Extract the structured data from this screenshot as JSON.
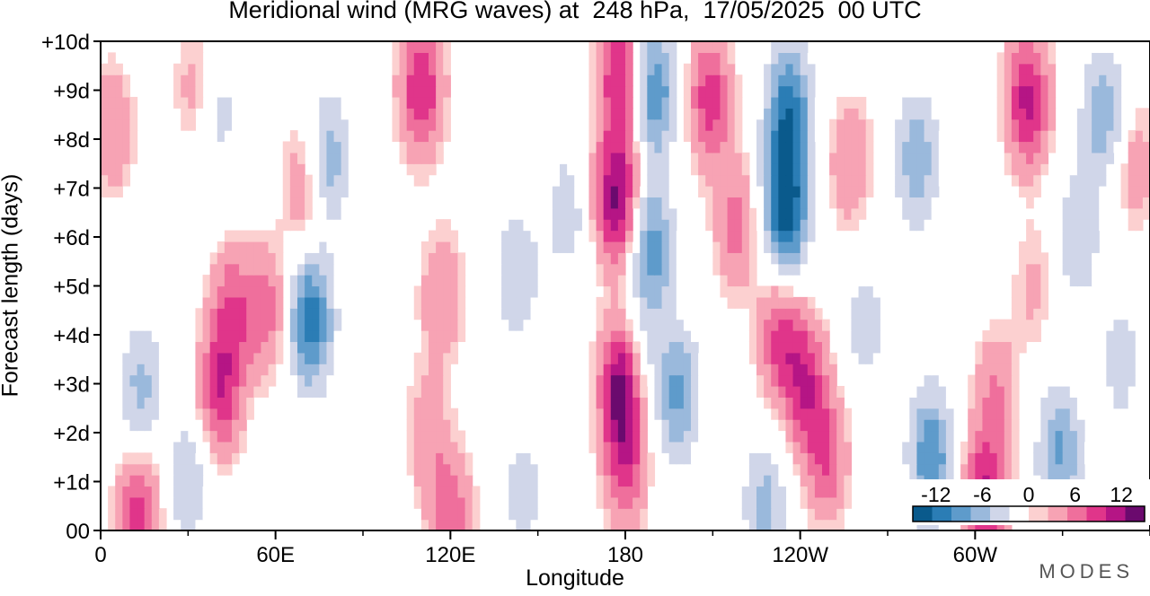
{
  "title": "Meridional wind (MRG waves) at  248 hPa,  17/05/2025  00 UTC",
  "brand": "MODES",
  "colors": {
    "levels": [
      "#0a5a8c",
      "#2b7db5",
      "#5e9bcb",
      "#9ab9dc",
      "#d0d6e9",
      "#ffffff",
      "#fcd0d0",
      "#f7a3b4",
      "#ef6f9c",
      "#e0358a",
      "#b51585",
      "#6b0a6e"
    ]
  },
  "chart_data": {
    "type": "heatmap",
    "title": "Meridional wind (MRG waves) at  248 hPa,  17/05/2025  00 UTC",
    "xlabel": "Longitude",
    "ylabel": "Forecast length (days)",
    "x_ticks": [
      "0",
      "60E",
      "120E",
      "180",
      "120W",
      "60W"
    ],
    "x_tick_values": [
      0,
      60,
      120,
      180,
      240,
      300
    ],
    "xlim": [
      0,
      360
    ],
    "y_ticks": [
      "00",
      "+1d",
      "+2d",
      "+3d",
      "+4d",
      "+5d",
      "+6d",
      "+7d",
      "+8d",
      "+9d",
      "+10d"
    ],
    "ylim": [
      0,
      10
    ],
    "colorbar": {
      "ticks": [
        "-12",
        "-6",
        "0",
        "6",
        "12"
      ],
      "tick_values": [
        -12,
        -6,
        0,
        6,
        12
      ],
      "range": [
        -15,
        15
      ]
    },
    "features": [
      {
        "lon": 13,
        "day": 0.3,
        "value": 9
      },
      {
        "lon": 4,
        "day": 8.2,
        "value": 5
      },
      {
        "lon": 14,
        "day": 2.9,
        "value": -6
      },
      {
        "lon": 30,
        "day": 1.0,
        "value": -5
      },
      {
        "lon": 33,
        "day": 9.0,
        "value": 4
      },
      {
        "lon": 40,
        "day": 8.5,
        "value": -4
      },
      {
        "lon": 45,
        "day": 4.5,
        "value": 7
      },
      {
        "lon": 41,
        "day": 2.8,
        "value": 9
      },
      {
        "lon": 57,
        "day": 4.5,
        "value": 6
      },
      {
        "lon": 70,
        "day": 7.0,
        "value": 5
      },
      {
        "lon": 72,
        "day": 4.3,
        "value": -12
      },
      {
        "lon": 78,
        "day": 7.6,
        "value": -7
      },
      {
        "lon": 110,
        "day": 9.0,
        "value": 10
      },
      {
        "lon": 112,
        "day": 2.0,
        "value": 4
      },
      {
        "lon": 117,
        "day": 4.8,
        "value": 5
      },
      {
        "lon": 120,
        "day": 0.3,
        "value": 7
      },
      {
        "lon": 143,
        "day": 5.2,
        "value": -5
      },
      {
        "lon": 160,
        "day": 6.5,
        "value": -4
      },
      {
        "lon": 145,
        "day": 0.8,
        "value": -4
      },
      {
        "lon": 178,
        "day": 9.3,
        "value": 10
      },
      {
        "lon": 177,
        "day": 6.8,
        "value": 13
      },
      {
        "lon": 179,
        "day": 3.0,
        "value": 15
      },
      {
        "lon": 180,
        "day": 1.3,
        "value": 7
      },
      {
        "lon": 184,
        "day": 3.5,
        "value": -5
      },
      {
        "lon": 190,
        "day": 9.0,
        "value": -10
      },
      {
        "lon": 189,
        "day": 5.8,
        "value": -9
      },
      {
        "lon": 198,
        "day": 2.8,
        "value": -8
      },
      {
        "lon": 209,
        "day": 8.8,
        "value": 9
      },
      {
        "lon": 218,
        "day": 6.2,
        "value": 6
      },
      {
        "lon": 236,
        "day": 8.5,
        "value": -12
      },
      {
        "lon": 235,
        "day": 6.5,
        "value": -14
      },
      {
        "lon": 242,
        "day": 3.0,
        "value": 9
      },
      {
        "lon": 233,
        "day": 4.0,
        "value": 8
      },
      {
        "lon": 228,
        "day": 0.5,
        "value": -6
      },
      {
        "lon": 249,
        "day": 1.5,
        "value": 7
      },
      {
        "lon": 257,
        "day": 7.5,
        "value": 5
      },
      {
        "lon": 262,
        "day": 4.2,
        "value": -4
      },
      {
        "lon": 280,
        "day": 7.6,
        "value": -7
      },
      {
        "lon": 285,
        "day": 1.5,
        "value": -10
      },
      {
        "lon": 303,
        "day": 0.6,
        "value": 11
      },
      {
        "lon": 307,
        "day": 2.8,
        "value": 5
      },
      {
        "lon": 318,
        "day": 8.8,
        "value": 11
      },
      {
        "lon": 329,
        "day": 1.6,
        "value": -8
      },
      {
        "lon": 344,
        "day": 8.5,
        "value": -7
      },
      {
        "lon": 335,
        "day": 6.0,
        "value": -5
      },
      {
        "lon": 350,
        "day": 3.5,
        "value": -4
      },
      {
        "lon": 355,
        "day": 7.5,
        "value": 4
      },
      {
        "lon": 320,
        "day": 5.0,
        "value": 3
      }
    ]
  }
}
